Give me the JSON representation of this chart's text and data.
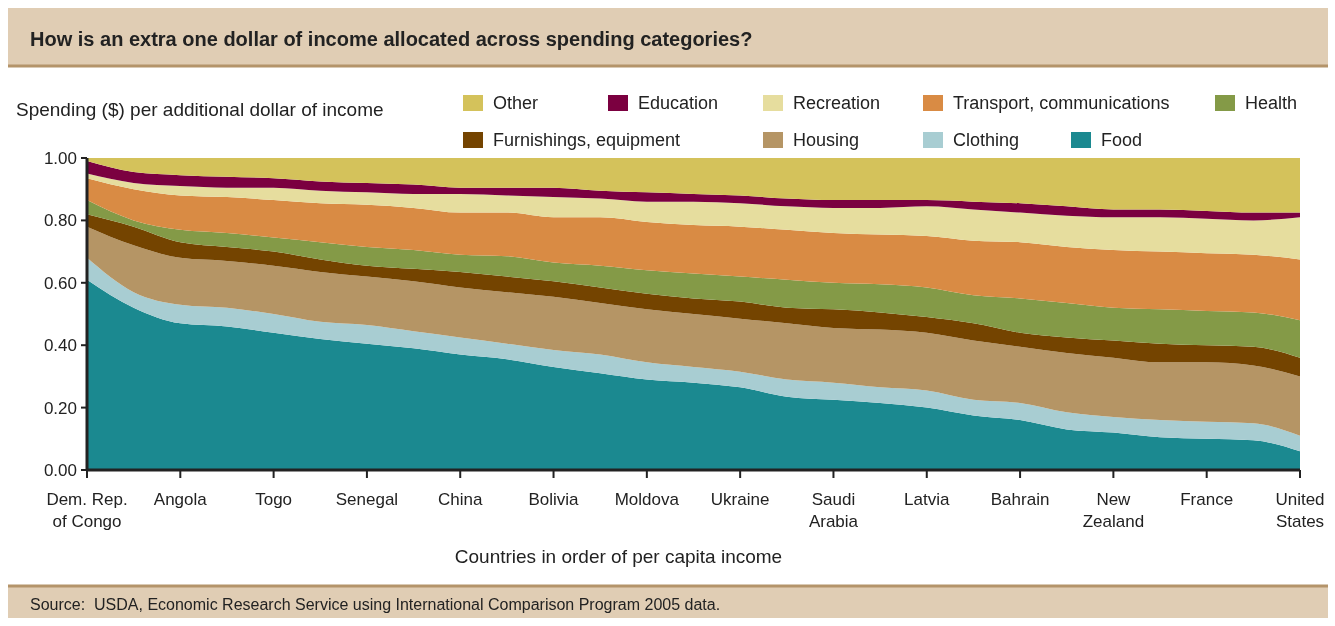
{
  "chart_data": {
    "type": "area",
    "stacked": true,
    "title": "How is an extra one dollar of income allocated across spending categories?",
    "ylabel": "Spending ($) per additional dollar of income",
    "xlabel": "Countries in order of per capita income",
    "annotations": [
      "Source:  USDA, Economic Research Service using International Comparison Program 2005 data."
    ],
    "categories": [
      "Dem. Rep.\nof Congo",
      null,
      "Angola",
      null,
      "Togo",
      null,
      "Senegal",
      null,
      "China",
      null,
      "Bolivia",
      null,
      "Moldova",
      null,
      "Ukraine",
      null,
      "Saudi\nArabia",
      null,
      "Latvia",
      null,
      "Bahrain",
      null,
      "New\nZealand",
      null,
      "France",
      null,
      "United\nStates"
    ],
    "ylim": [
      0,
      1
    ],
    "yticks": [
      {
        "value": 0,
        "label": "0.00"
      },
      {
        "value": 0.2,
        "label": "0.20"
      },
      {
        "value": 0.4,
        "label": "0.40"
      },
      {
        "value": 0.6,
        "label": "0.60"
      },
      {
        "value": 0.8,
        "label": "0.80"
      },
      {
        "value": 1,
        "label": "1.00"
      }
    ],
    "legend": "top",
    "series": [
      {
        "name": "Food",
        "color": "#1b8990",
        "values": [
          0.61,
          0.52,
          0.47,
          0.46,
          0.44,
          0.42,
          0.405,
          0.39,
          0.37,
          0.355,
          0.33,
          0.31,
          0.29,
          0.28,
          0.265,
          0.235,
          0.225,
          0.215,
          0.2,
          0.175,
          0.16,
          0.13,
          0.12,
          0.105,
          0.1,
          0.095,
          0.06
        ]
      },
      {
        "name": "Clothing",
        "color": "#a8cdd2",
        "values": [
          0.07,
          0.05,
          0.06,
          0.06,
          0.06,
          0.055,
          0.06,
          0.055,
          0.055,
          0.05,
          0.055,
          0.06,
          0.055,
          0.05,
          0.05,
          0.055,
          0.055,
          0.05,
          0.055,
          0.05,
          0.055,
          0.055,
          0.05,
          0.055,
          0.055,
          0.055,
          0.05
        ]
      },
      {
        "name": "Housing",
        "color": "#b59565",
        "values": [
          0.1,
          0.15,
          0.15,
          0.15,
          0.155,
          0.16,
          0.155,
          0.16,
          0.16,
          0.165,
          0.17,
          0.165,
          0.17,
          0.17,
          0.17,
          0.18,
          0.175,
          0.185,
          0.185,
          0.19,
          0.18,
          0.19,
          0.19,
          0.185,
          0.19,
          0.185,
          0.19
        ]
      },
      {
        "name": "Furnishings, equipment",
        "color": "#744400",
        "values": [
          0.04,
          0.06,
          0.05,
          0.045,
          0.045,
          0.04,
          0.035,
          0.04,
          0.05,
          0.05,
          0.05,
          0.05,
          0.05,
          0.05,
          0.055,
          0.05,
          0.06,
          0.055,
          0.05,
          0.055,
          0.045,
          0.05,
          0.055,
          0.06,
          0.055,
          0.06,
          0.06
        ]
      },
      {
        "name": "Health",
        "color": "#849a47",
        "values": [
          0.045,
          0.02,
          0.04,
          0.045,
          0.045,
          0.055,
          0.06,
          0.06,
          0.055,
          0.065,
          0.06,
          0.07,
          0.075,
          0.08,
          0.08,
          0.09,
          0.085,
          0.09,
          0.095,
          0.09,
          0.11,
          0.11,
          0.105,
          0.11,
          0.11,
          0.11,
          0.12
        ]
      },
      {
        "name": "Transport, communications",
        "color": "#d98b44",
        "values": [
          0.07,
          0.1,
          0.11,
          0.115,
          0.12,
          0.125,
          0.135,
          0.135,
          0.135,
          0.14,
          0.145,
          0.155,
          0.155,
          0.155,
          0.16,
          0.16,
          0.16,
          0.16,
          0.165,
          0.175,
          0.18,
          0.18,
          0.185,
          0.185,
          0.185,
          0.185,
          0.195
        ]
      },
      {
        "name": "Recreation",
        "color": "#e6dd9e",
        "values": [
          0.015,
          0.02,
          0.03,
          0.03,
          0.04,
          0.04,
          0.04,
          0.045,
          0.06,
          0.055,
          0.065,
          0.06,
          0.065,
          0.075,
          0.075,
          0.075,
          0.08,
          0.085,
          0.095,
          0.1,
          0.095,
          0.1,
          0.105,
          0.11,
          0.11,
          0.11,
          0.135
        ]
      },
      {
        "name": "Education",
        "color": "#7b0040",
        "values": [
          0.04,
          0.035,
          0.035,
          0.035,
          0.03,
          0.03,
          0.03,
          0.03,
          0.02,
          0.025,
          0.03,
          0.025,
          0.03,
          0.025,
          0.025,
          0.025,
          0.025,
          0.025,
          0.02,
          0.025,
          0.03,
          0.03,
          0.025,
          0.025,
          0.025,
          0.025,
          0.015
        ]
      },
      {
        "name": "Other",
        "color": "#d4c25b",
        "values": [
          0.01,
          0.045,
          0.055,
          0.06,
          0.065,
          0.075,
          0.08,
          0.085,
          0.095,
          0.095,
          0.095,
          0.105,
          0.11,
          0.115,
          0.12,
          0.13,
          0.135,
          0.135,
          0.135,
          0.14,
          0.145,
          0.155,
          0.165,
          0.165,
          0.17,
          0.175,
          0.175
        ]
      }
    ]
  }
}
